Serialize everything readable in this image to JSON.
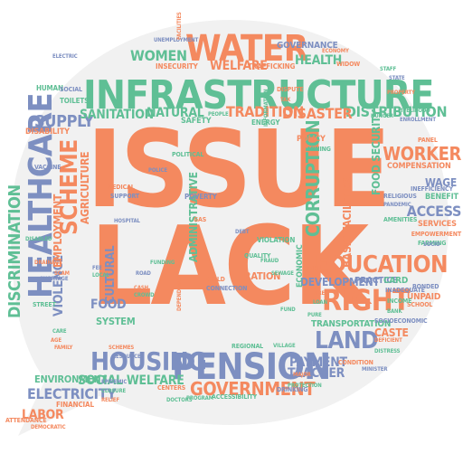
{
  "palette": {
    "orange": "#f4895f",
    "teal": "#5fbf95",
    "slate": "#7d8fc1",
    "bubble_fill": "#f1f1f1"
  },
  "words": [
    {
      "text": "ISSUE",
      "color": "orange"
    },
    {
      "text": "LACK",
      "color": "orange"
    },
    {
      "text": "INFRASTRUCTURE",
      "color": "teal"
    },
    {
      "text": "HEALTHCARE",
      "color": "slate"
    },
    {
      "text": "PENSION",
      "color": "slate"
    },
    {
      "text": "WATER",
      "color": "orange"
    },
    {
      "text": "EDUCATION",
      "color": "orange"
    },
    {
      "text": "HOUSING",
      "color": "slate"
    },
    {
      "text": "RIGHT",
      "color": "orange"
    },
    {
      "text": "LAND",
      "color": "slate"
    },
    {
      "text": "SCHEME",
      "color": "orange"
    },
    {
      "text": "CORRUPTION",
      "color": "teal"
    },
    {
      "text": "WORKER",
      "color": "orange"
    },
    {
      "text": "GOVERNMENT",
      "color": "orange"
    },
    {
      "text": "DISCRIMINATION",
      "color": "teal"
    },
    {
      "text": "SUPPLY",
      "color": "slate"
    },
    {
      "text": "ACCESS",
      "color": "slate"
    },
    {
      "text": "ELECTRICITY",
      "color": "slate"
    },
    {
      "text": "DISTRIBUTION",
      "color": "teal"
    },
    {
      "text": "FOOD SECURITY",
      "color": "teal"
    },
    {
      "text": "BASIC FACILITIES",
      "color": "orange"
    },
    {
      "text": "WOMEN",
      "color": "teal"
    },
    {
      "text": "HEALTH",
      "color": "teal"
    },
    {
      "text": "TRADITION",
      "color": "orange"
    },
    {
      "text": "DISASTER",
      "color": "orange"
    },
    {
      "text": "WELFARE",
      "color": "orange"
    },
    {
      "text": "SOCIAL WELFARE",
      "color": "teal"
    },
    {
      "text": "PAYMENT",
      "color": "slate"
    },
    {
      "text": "TEACHER",
      "color": "slate"
    },
    {
      "text": "LABOR",
      "color": "orange"
    },
    {
      "text": "ENVIRONMENT",
      "color": "teal"
    },
    {
      "text": "SANITATION",
      "color": "teal"
    },
    {
      "text": "NATURAL",
      "color": "teal"
    },
    {
      "text": "FOOD",
      "color": "slate"
    },
    {
      "text": "VIOLENCE",
      "color": "slate"
    },
    {
      "text": "CULTURAL",
      "color": "slate"
    },
    {
      "text": "EMPLOYMENT",
      "color": "orange"
    },
    {
      "text": "AGRICULTURE",
      "color": "orange"
    },
    {
      "text": "WAGE",
      "color": "slate"
    },
    {
      "text": "ADMINISTRATIVE",
      "color": "teal"
    },
    {
      "text": "DEVELOPMENT",
      "color": "slate"
    },
    {
      "text": "TRANSPORTATION",
      "color": "teal"
    },
    {
      "text": "COMPENSATION",
      "color": "orange"
    },
    {
      "text": "BENEFIT",
      "color": "teal"
    },
    {
      "text": "SERVICES",
      "color": "orange"
    },
    {
      "text": "CASTE",
      "color": "orange"
    },
    {
      "text": "GOVERNANCE",
      "color": "slate"
    },
    {
      "text": "ECONOMIC",
      "color": "teal"
    },
    {
      "text": "RATION",
      "color": "orange"
    },
    {
      "text": "PRACTICE",
      "color": "slate"
    },
    {
      "text": "CARD",
      "color": "teal"
    },
    {
      "text": "UNPAID",
      "color": "orange"
    },
    {
      "text": "POLICY",
      "color": "orange"
    },
    {
      "text": "SYSTEM",
      "color": "teal"
    },
    {
      "text": "INSECURITY",
      "color": "orange"
    },
    {
      "text": "POVERTY",
      "color": "slate"
    },
    {
      "text": "SAFETY",
      "color": "teal"
    },
    {
      "text": "ENERGY",
      "color": "teal"
    },
    {
      "text": "TRAFFICKING",
      "color": "orange"
    },
    {
      "text": "MINING",
      "color": "teal"
    },
    {
      "text": "VACCINE",
      "color": "slate"
    },
    {
      "text": "DISABILITY",
      "color": "orange"
    },
    {
      "text": "HUMAN",
      "color": "teal"
    },
    {
      "text": "TOILETS",
      "color": "teal"
    },
    {
      "text": "SOCIAL",
      "color": "slate"
    },
    {
      "text": "STREET",
      "color": "teal"
    },
    {
      "text": "FARMING",
      "color": "teal"
    },
    {
      "text": "EMPOWERMENT",
      "color": "orange"
    },
    {
      "text": "INADEQUATE",
      "color": "slate"
    },
    {
      "text": "BONDED",
      "color": "slate"
    },
    {
      "text": "SCHOOL",
      "color": "orange"
    },
    {
      "text": "RELIGIOUS",
      "color": "slate"
    },
    {
      "text": "AMENITIES",
      "color": "teal"
    },
    {
      "text": "PANDEMIC",
      "color": "slate"
    },
    {
      "text": "INEFFICIENCY",
      "color": "slate"
    },
    {
      "text": "DRINKING",
      "color": "slate"
    },
    {
      "text": "ACCESSIBILITY",
      "color": "teal"
    },
    {
      "text": "CONDITION",
      "color": "orange"
    },
    {
      "text": "MINISTER",
      "color": "slate"
    },
    {
      "text": "SOCIOECONOMIC",
      "color": "slate"
    },
    {
      "text": "PROGRAM",
      "color": "teal"
    },
    {
      "text": "CENTERS",
      "color": "orange"
    },
    {
      "text": "CONNECTION",
      "color": "slate"
    },
    {
      "text": "CHILD",
      "color": "orange"
    },
    {
      "text": "MEDICAL",
      "color": "orange"
    },
    {
      "text": "SUPPORT",
      "color": "slate"
    },
    {
      "text": "POLITICAL",
      "color": "teal"
    },
    {
      "text": "VIOLATION",
      "color": "teal"
    },
    {
      "text": "HOSPITAL",
      "color": "slate"
    },
    {
      "text": "ATTENDANCE",
      "color": "orange"
    },
    {
      "text": "FINANCIAL",
      "color": "orange"
    },
    {
      "text": "ELECTRIC",
      "color": "slate"
    },
    {
      "text": "EPIDEMIC",
      "color": "slate"
    },
    {
      "text": "CLOSURE",
      "color": "teal"
    },
    {
      "text": "REGIONAL",
      "color": "teal"
    },
    {
      "text": "VILLAGE",
      "color": "teal"
    },
    {
      "text": "DEPENDENCE",
      "color": "orange"
    },
    {
      "text": "DEFICIENT",
      "color": "orange"
    },
    {
      "text": "ECONOMY",
      "color": "orange"
    },
    {
      "text": "WIDOW",
      "color": "orange"
    },
    {
      "text": "STAFF",
      "color": "teal"
    },
    {
      "text": "DISPUTE",
      "color": "orange"
    },
    {
      "text": "FRAUD",
      "color": "teal"
    },
    {
      "text": "FUNDING",
      "color": "teal"
    },
    {
      "text": "PROTECTION",
      "color": "teal"
    },
    {
      "text": "UNEMPLOYMENT",
      "color": "slate"
    },
    {
      "text": "FACILITIES",
      "color": "orange"
    },
    {
      "text": "PANEL",
      "color": "orange"
    },
    {
      "text": "PEOPLE",
      "color": "teal"
    },
    {
      "text": "RESOURCE",
      "color": "slate"
    },
    {
      "text": "INCOME",
      "color": "teal"
    },
    {
      "text": "DRAINAGE",
      "color": "orange"
    },
    {
      "text": "SHORTAGE",
      "color": "slate"
    },
    {
      "text": "QUALITY",
      "color": "teal"
    },
    {
      "text": "HIGH",
      "color": "orange"
    },
    {
      "text": "FEE",
      "color": "slate"
    },
    {
      "text": "LOCAL",
      "color": "teal"
    },
    {
      "text": "CASH",
      "color": "orange"
    },
    {
      "text": "AGE",
      "color": "orange"
    },
    {
      "text": "GAS",
      "color": "orange"
    },
    {
      "text": "DEBT",
      "color": "slate"
    },
    {
      "text": "FIRE",
      "color": "orange"
    },
    {
      "text": "LOAN",
      "color": "teal"
    },
    {
      "text": "STATE",
      "color": "slate"
    },
    {
      "text": "SOCIO",
      "color": "slate"
    },
    {
      "text": "POLICE",
      "color": "slate"
    },
    {
      "text": "CARE",
      "color": "teal"
    },
    {
      "text": "RELIEF",
      "color": "orange"
    },
    {
      "text": "DOCTORS",
      "color": "teal"
    },
    {
      "text": "DISTRESS",
      "color": "teal"
    },
    {
      "text": "SEWAGE",
      "color": "teal"
    },
    {
      "text": "FUND",
      "color": "teal"
    },
    {
      "text": "SCAM",
      "color": "orange"
    },
    {
      "text": "HUNGER",
      "color": "teal"
    },
    {
      "text": "SCHEMES",
      "color": "orange"
    },
    {
      "text": "DISABLED",
      "color": "teal"
    },
    {
      "text": "ENROLLMENT",
      "color": "slate"
    },
    {
      "text": "DEMOCRATIC",
      "color": "orange"
    },
    {
      "text": "LIVELIHOOD",
      "color": "teal"
    },
    {
      "text": "ROAD",
      "color": "slate"
    },
    {
      "text": "PURE",
      "color": "teal"
    },
    {
      "text": "TAX",
      "color": "orange"
    },
    {
      "text": "BANK",
      "color": "teal"
    },
    {
      "text": "MAJOR",
      "color": "orange"
    },
    {
      "text": "CROWD",
      "color": "teal"
    },
    {
      "text": "FAMILY",
      "color": "orange"
    },
    {
      "text": "INFORMATION",
      "color": "teal"
    },
    {
      "text": "PROPERTY",
      "color": "orange"
    }
  ]
}
